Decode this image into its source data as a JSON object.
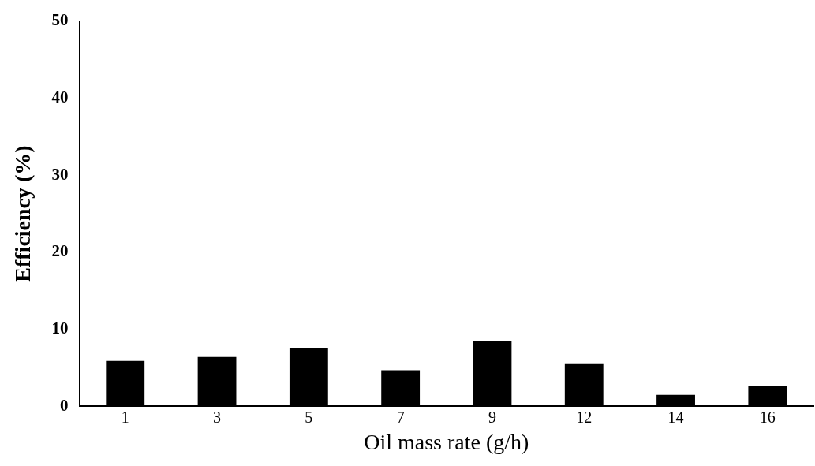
{
  "chart_data": {
    "type": "bar",
    "xlabel": "Oil mass rate (g/h)",
    "ylabel": "Efficiency (%)",
    "categories": [
      "1",
      "3",
      "5",
      "7",
      "9",
      "12",
      "14",
      "16"
    ],
    "values": [
      5.9,
      6.4,
      7.6,
      4.7,
      8.5,
      5.5,
      1.5,
      2.7
    ],
    "color": "#000000",
    "ylim": [
      0,
      50
    ],
    "yticks": [
      0,
      10,
      20,
      30,
      40,
      50
    ],
    "grid": false,
    "legend": false
  }
}
